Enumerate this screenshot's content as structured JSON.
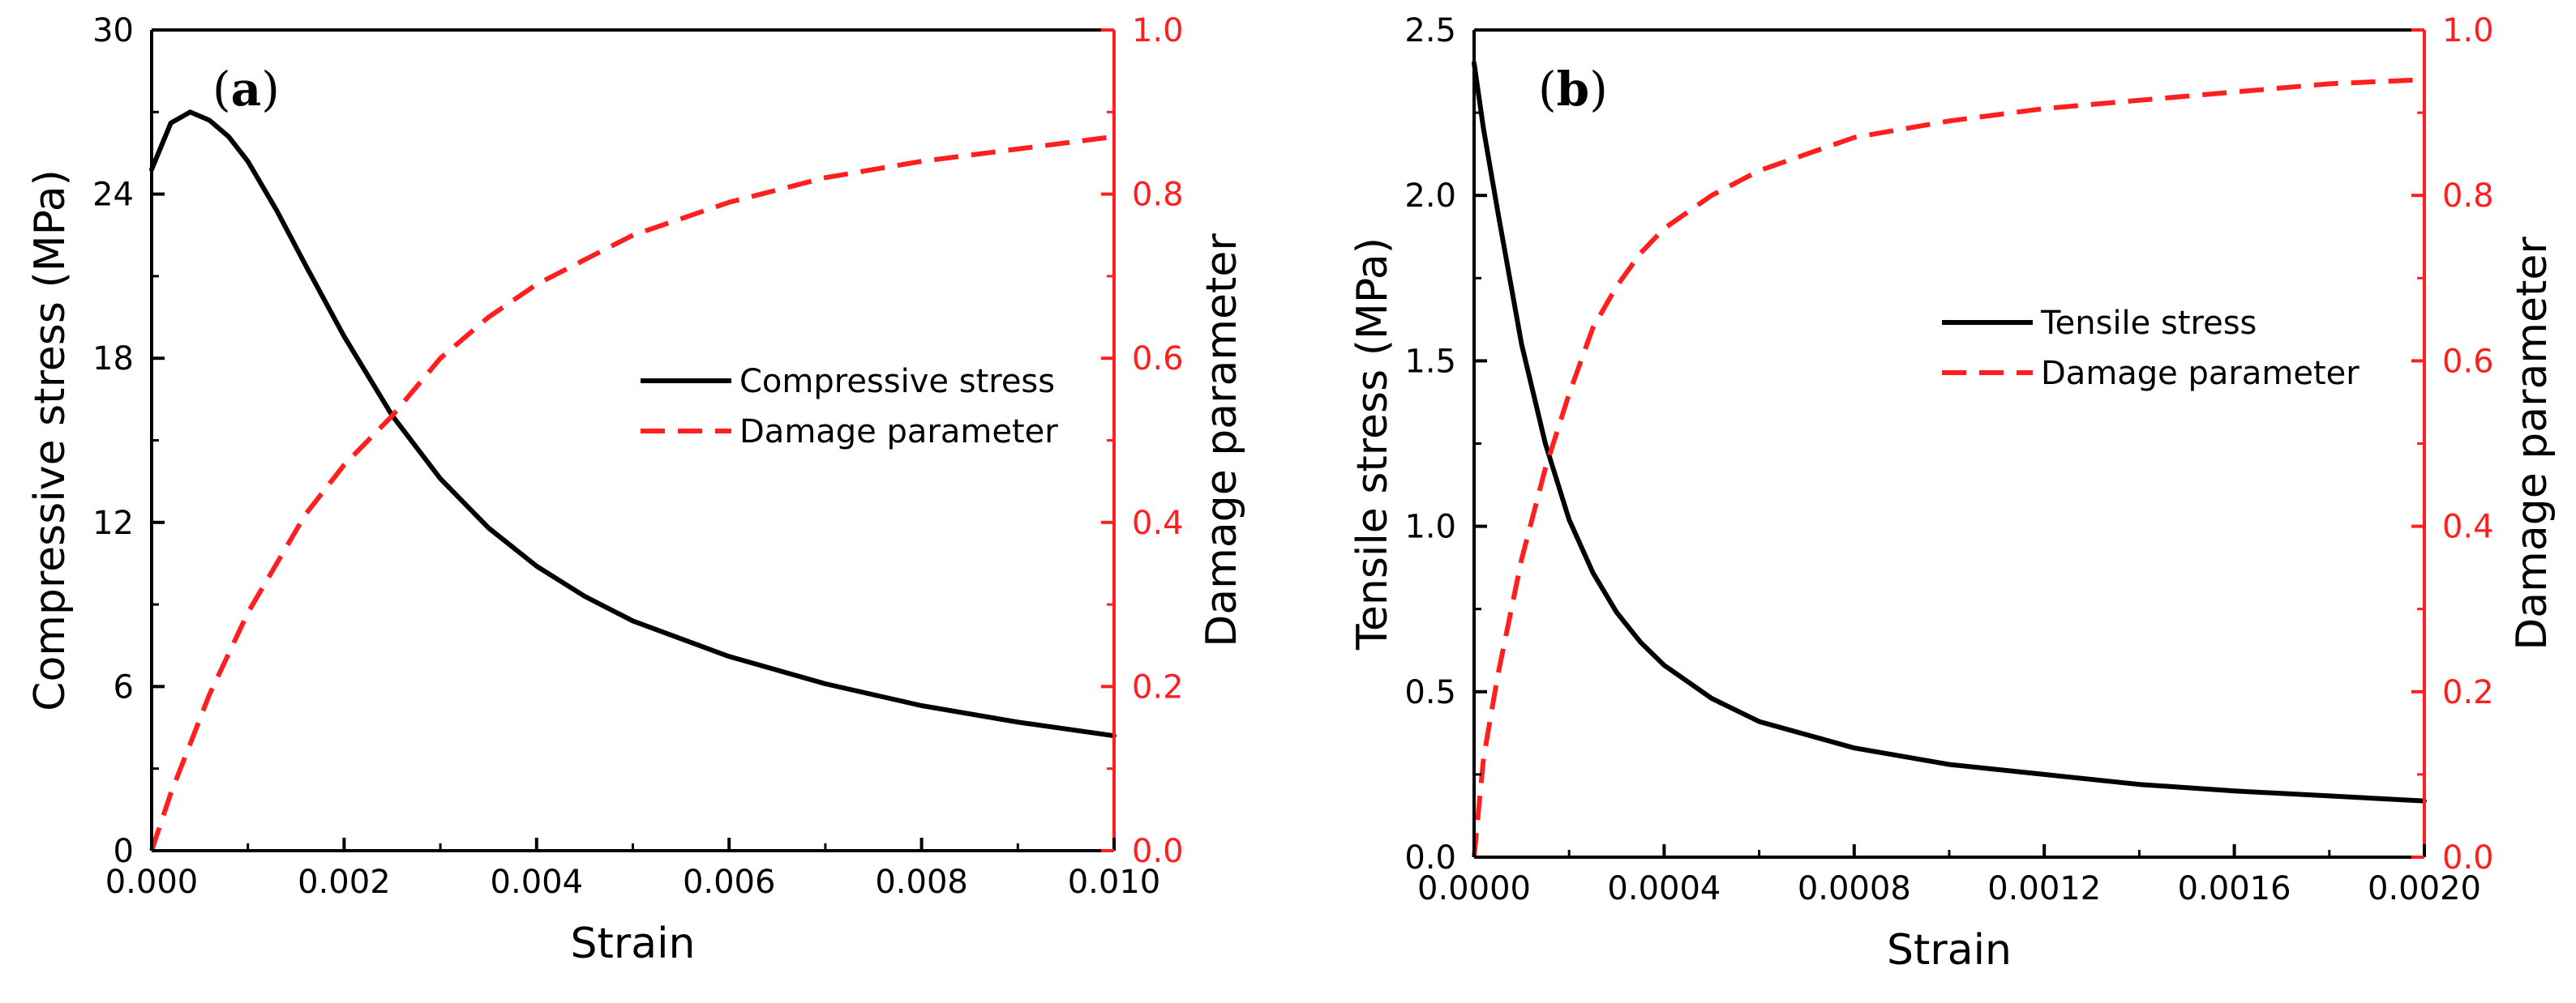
{
  "colors": {
    "stress": "#000000",
    "damage": "#ff1f1f",
    "axis": "#000000",
    "right_axis": "#ff1f1f"
  },
  "chart_data": [
    {
      "type": "line",
      "panel_label": "a",
      "xlabel": "Strain",
      "ylabel": "Compressive stress (MPa)",
      "y2label": "Damage parameter",
      "xlim": [
        0,
        0.01
      ],
      "ylim": [
        0,
        30
      ],
      "y2lim": [
        0,
        1.0
      ],
      "xticks": [
        "0.000",
        "0.002",
        "0.004",
        "0.006",
        "0.008",
        "0.010"
      ],
      "yticks": [
        "0",
        "6",
        "12",
        "18",
        "24",
        "30"
      ],
      "y2ticks": [
        "0.0",
        "0.2",
        "0.4",
        "0.6",
        "0.8",
        "1.0"
      ],
      "legend_position": "center-right",
      "series": [
        {
          "name": "Compressive stress",
          "axis": "left",
          "style": "solid",
          "x": [
            0,
            0.0002,
            0.0004,
            0.0006,
            0.0008,
            0.001,
            0.0013,
            0.0016,
            0.002,
            0.0025,
            0.003,
            0.0035,
            0.004,
            0.0045,
            0.005,
            0.006,
            0.007,
            0.008,
            0.009,
            0.01
          ],
          "y": [
            24.9,
            26.6,
            27.0,
            26.7,
            26.1,
            25.2,
            23.4,
            21.4,
            18.8,
            15.9,
            13.6,
            11.8,
            10.4,
            9.3,
            8.4,
            7.1,
            6.1,
            5.3,
            4.7,
            4.2
          ]
        },
        {
          "name": "Damage parameter",
          "axis": "right",
          "style": "dashed",
          "x": [
            0,
            0.0002,
            0.0004,
            0.0006,
            0.0008,
            0.001,
            0.0013,
            0.0016,
            0.002,
            0.0025,
            0.003,
            0.0035,
            0.004,
            0.0045,
            0.005,
            0.006,
            0.007,
            0.008,
            0.009,
            0.01
          ],
          "y": [
            0.0,
            0.07,
            0.13,
            0.19,
            0.24,
            0.29,
            0.35,
            0.41,
            0.47,
            0.53,
            0.6,
            0.65,
            0.69,
            0.72,
            0.75,
            0.79,
            0.82,
            0.84,
            0.855,
            0.87
          ]
        }
      ]
    },
    {
      "type": "line",
      "panel_label": "b",
      "xlabel": "Strain",
      "ylabel": "Tensile stress (MPa)",
      "y2label": "Damage parameter",
      "xlim": [
        0,
        0.002
      ],
      "ylim": [
        0,
        2.5
      ],
      "y2lim": [
        0,
        1.0
      ],
      "xticks": [
        "0.0000",
        "0.0004",
        "0.0008",
        "0.0012",
        "0.0016",
        "0.0020"
      ],
      "yticks": [
        "0.0",
        "0.5",
        "1.0",
        "1.5",
        "2.0",
        "2.5"
      ],
      "y2ticks": [
        "0.0",
        "0.2",
        "0.4",
        "0.6",
        "0.8",
        "1.0"
      ],
      "legend_position": "upper-right",
      "series": [
        {
          "name": "Tensile stress",
          "axis": "left",
          "style": "solid",
          "x": [
            0,
            2e-05,
            5e-05,
            0.0001,
            0.00015,
            0.0002,
            0.00025,
            0.0003,
            0.00035,
            0.0004,
            0.0005,
            0.0006,
            0.0008,
            0.001,
            0.0012,
            0.0014,
            0.0016,
            0.0018,
            0.002
          ],
          "y": [
            2.4,
            2.2,
            1.95,
            1.55,
            1.25,
            1.02,
            0.86,
            0.74,
            0.65,
            0.58,
            0.48,
            0.41,
            0.33,
            0.28,
            0.25,
            0.22,
            0.2,
            0.185,
            0.17
          ]
        },
        {
          "name": "Damage parameter",
          "axis": "right",
          "style": "dashed",
          "x": [
            0,
            2e-05,
            5e-05,
            0.0001,
            0.00015,
            0.0002,
            0.00025,
            0.0003,
            0.00035,
            0.0004,
            0.0005,
            0.0006,
            0.0008,
            0.001,
            0.0012,
            0.0014,
            0.0016,
            0.0018,
            0.002
          ],
          "y": [
            0.0,
            0.12,
            0.22,
            0.36,
            0.47,
            0.56,
            0.64,
            0.69,
            0.73,
            0.76,
            0.8,
            0.83,
            0.87,
            0.89,
            0.905,
            0.915,
            0.925,
            0.935,
            0.94
          ]
        }
      ]
    }
  ]
}
